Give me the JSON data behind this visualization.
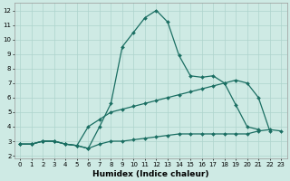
{
  "title": "",
  "xlabel": "Humidex (Indice chaleur)",
  "ylabel": "",
  "background_color": "#ceeae4",
  "grid_color": "#aed4cc",
  "line_color": "#1a6e62",
  "xlim": [
    -0.5,
    23.5
  ],
  "ylim": [
    1.8,
    12.5
  ],
  "xticks": [
    0,
    1,
    2,
    3,
    4,
    5,
    6,
    7,
    8,
    9,
    10,
    11,
    12,
    13,
    14,
    15,
    16,
    17,
    18,
    19,
    20,
    21,
    22,
    23
  ],
  "yticks": [
    2,
    3,
    4,
    5,
    6,
    7,
    8,
    9,
    10,
    11,
    12
  ],
  "line1_x": [
    0,
    1,
    2,
    3,
    4,
    5,
    6,
    7,
    8,
    9,
    10,
    11,
    12,
    13,
    14,
    15,
    16,
    17,
    18,
    19,
    20,
    21
  ],
  "line1_y": [
    2.8,
    2.8,
    3.0,
    3.0,
    2.8,
    2.7,
    2.5,
    4.0,
    5.6,
    9.5,
    10.5,
    11.5,
    12.0,
    11.2,
    8.9,
    7.5,
    7.4,
    7.5,
    7.0,
    5.5,
    4.0,
    3.8
  ],
  "line2_x": [
    0,
    1,
    2,
    3,
    4,
    5,
    6,
    7,
    8,
    9,
    10,
    11,
    12,
    13,
    14,
    15,
    16,
    17,
    18,
    19,
    20,
    21,
    22
  ],
  "line2_y": [
    2.8,
    2.8,
    3.0,
    3.0,
    2.8,
    2.7,
    4.0,
    4.5,
    5.0,
    5.2,
    5.4,
    5.6,
    5.8,
    6.0,
    6.2,
    6.4,
    6.6,
    6.8,
    7.0,
    7.2,
    7.0,
    6.0,
    3.7
  ],
  "line3_x": [
    0,
    1,
    2,
    3,
    4,
    5,
    6,
    7,
    8,
    9,
    10,
    11,
    12,
    13,
    14,
    15,
    16,
    17,
    18,
    19,
    20,
    21,
    22,
    23
  ],
  "line3_y": [
    2.8,
    2.8,
    3.0,
    3.0,
    2.8,
    2.7,
    2.5,
    2.8,
    3.0,
    3.0,
    3.1,
    3.2,
    3.3,
    3.4,
    3.5,
    3.5,
    3.5,
    3.5,
    3.5,
    3.5,
    3.5,
    3.7,
    3.8,
    3.7
  ],
  "marker": "D",
  "marker_size": 2.0,
  "line_width": 0.9,
  "tick_fontsize": 5.0,
  "label_fontsize": 6.5,
  "label_fontweight": "bold"
}
